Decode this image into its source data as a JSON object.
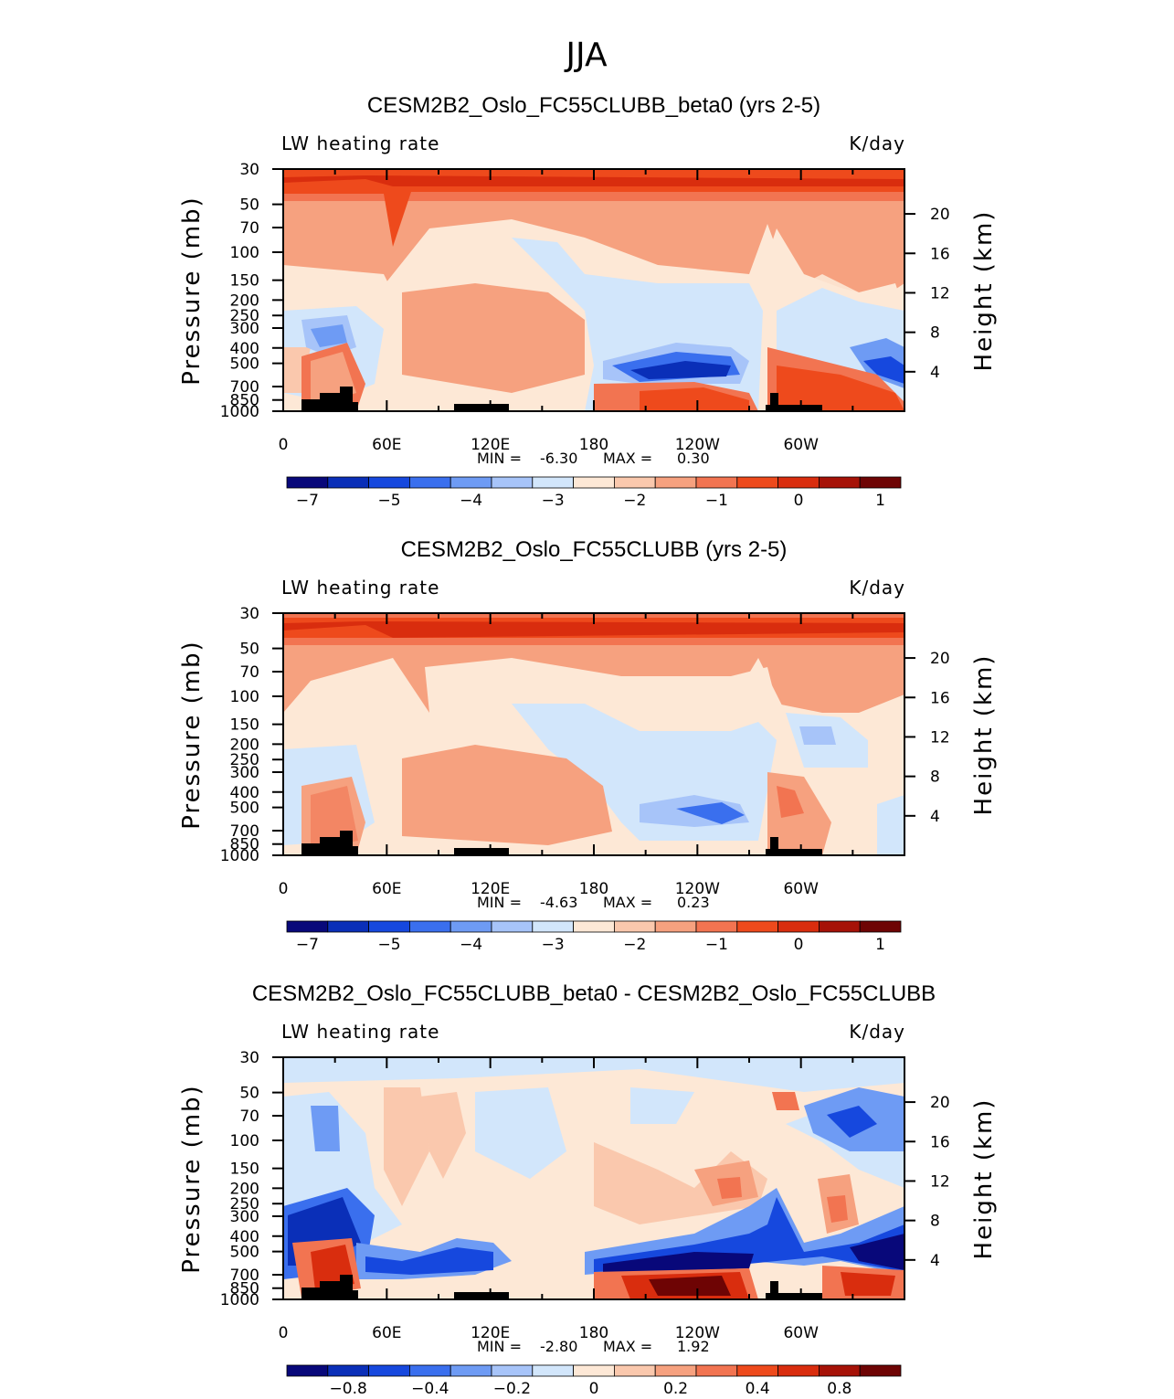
{
  "figure_title": "JJA",
  "chart_data": [
    {
      "type": "heatmap",
      "title": "CESM2B2_Oslo_FC55CLUBB_beta0 (yrs 2-5)",
      "left_label": "LW heating rate",
      "right_label": "K/day",
      "ylabel": "Pressure (mb)",
      "y2label": "Height (km)",
      "x_ticks": [
        "0",
        "60E",
        "120E",
        "180",
        "120W",
        "60W"
      ],
      "y_ticks": [
        "30",
        "50",
        "70",
        "100",
        "150",
        "200",
        "250",
        "300",
        "400",
        "500",
        "700",
        "850",
        "1000"
      ],
      "y2_ticks": [
        "20",
        "16",
        "12",
        "8",
        "4"
      ],
      "min_label": "MIN =",
      "min_value": "-6.30",
      "max_label": "MAX =",
      "max_value": "0.30",
      "colorbar_labels": [
        "-7",
        "-5",
        "-4",
        "-3",
        "-2",
        "-1",
        "0",
        "1"
      ],
      "colors": [
        "#08087a",
        "#0a2fb8",
        "#1648de",
        "#3a6fee",
        "#6e9bf4",
        "#a7c4f9",
        "#d2e6fb",
        "#fde8d6",
        "#fac8ad",
        "#f6a17f",
        "#f27451",
        "#ee4a1c",
        "#d92d0e",
        "#a61207",
        "#6e0404"
      ]
    },
    {
      "type": "heatmap",
      "title": "CESM2B2_Oslo_FC55CLUBB (yrs 2-5)",
      "left_label": "LW heating rate",
      "right_label": "K/day",
      "ylabel": "Pressure (mb)",
      "y2label": "Height (km)",
      "x_ticks": [
        "0",
        "60E",
        "120E",
        "180",
        "120W",
        "60W"
      ],
      "y_ticks": [
        "30",
        "50",
        "70",
        "100",
        "150",
        "200",
        "250",
        "300",
        "400",
        "500",
        "700",
        "850",
        "1000"
      ],
      "y2_ticks": [
        "20",
        "16",
        "12",
        "8",
        "4"
      ],
      "min_label": "MIN =",
      "min_value": "-4.63",
      "max_label": "MAX =",
      "max_value": "0.23",
      "colorbar_labels": [
        "-7",
        "-5",
        "-4",
        "-3",
        "-2",
        "-1",
        "0",
        "1"
      ],
      "colors": [
        "#08087a",
        "#0a2fb8",
        "#1648de",
        "#3a6fee",
        "#6e9bf4",
        "#a7c4f9",
        "#d2e6fb",
        "#fde8d6",
        "#fac8ad",
        "#f6a17f",
        "#f27451",
        "#ee4a1c",
        "#d92d0e",
        "#a61207",
        "#6e0404"
      ]
    },
    {
      "type": "heatmap",
      "title": "CESM2B2_Oslo_FC55CLUBB_beta0 - CESM2B2_Oslo_FC55CLUBB",
      "left_label": "LW heating rate",
      "right_label": "K/day",
      "ylabel": "Pressure (mb)",
      "y2label": "Height (km)",
      "x_ticks": [
        "0",
        "60E",
        "120E",
        "180",
        "120W",
        "60W"
      ],
      "y_ticks": [
        "30",
        "50",
        "70",
        "100",
        "150",
        "200",
        "250",
        "300",
        "400",
        "500",
        "700",
        "850",
        "1000"
      ],
      "y2_ticks": [
        "20",
        "16",
        "12",
        "8",
        "4"
      ],
      "min_label": "MIN =",
      "min_value": "-2.80",
      "max_label": "MAX =",
      "max_value": "1.92",
      "colorbar_labels": [
        "-0.8",
        "-0.4",
        "-0.2",
        "0",
        "0.2",
        "0.4",
        "0.8"
      ],
      "colors": [
        "#08087a",
        "#0a2fb8",
        "#1648de",
        "#3a6fee",
        "#6e9bf4",
        "#a7c4f9",
        "#d2e6fb",
        "#fde8d6",
        "#fac8ad",
        "#f6a17f",
        "#f27451",
        "#ee4a1c",
        "#d92d0e",
        "#a61207",
        "#6e0404"
      ]
    }
  ]
}
